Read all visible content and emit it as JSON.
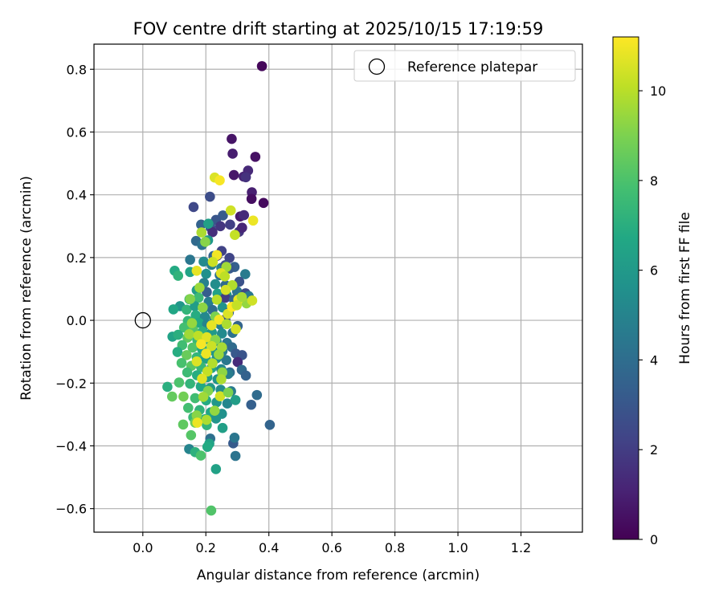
{
  "chart_data": {
    "type": "scatter",
    "title": "FOV centre drift starting at 2025/10/15 17:19:59",
    "xlabel": "Angular distance from reference (arcmin)",
    "ylabel": "Rotation from reference (arcmin)",
    "xlim": [
      -0.155,
      1.395
    ],
    "ylim": [
      -0.675,
      0.88
    ],
    "xticks": [
      0.0,
      0.2,
      0.4,
      0.6,
      0.8,
      1.0,
      1.2
    ],
    "xtick_labels": [
      "0.0",
      "0.2",
      "0.4",
      "0.6",
      "0.8",
      "1.0",
      "1.2"
    ],
    "yticks": [
      -0.6,
      -0.4,
      -0.2,
      0.0,
      0.2,
      0.4,
      0.6,
      0.8
    ],
    "ytick_labels": [
      "−0.6",
      "−0.4",
      "−0.2",
      "0.0",
      "0.2",
      "0.4",
      "0.6",
      "0.8"
    ],
    "grid": true,
    "legend": {
      "placement": "top-right",
      "entries": [
        "Reference platepar"
      ]
    },
    "reference_point": {
      "x": 0.0,
      "y": 0.0
    },
    "colorbar": {
      "label": "Hours from first FF file",
      "colormap": "viridis",
      "range": [
        0,
        11.2
      ],
      "ticks": [
        0,
        2,
        4,
        6,
        8,
        10
      ],
      "tick_labels": [
        "0",
        "2",
        "4",
        "6",
        "8",
        "10"
      ]
    },
    "points_columns": [
      "x",
      "y",
      "hours"
    ],
    "points": [
      [
        0.378,
        0.81,
        0.2
      ],
      [
        0.282,
        0.578,
        0.6
      ],
      [
        0.285,
        0.531,
        0.9
      ],
      [
        0.357,
        0.521,
        0.5
      ],
      [
        0.334,
        0.477,
        1.3
      ],
      [
        0.289,
        0.463,
        0.7
      ],
      [
        0.32,
        0.458,
        1.1
      ],
      [
        0.327,
        0.456,
        1.6
      ],
      [
        0.346,
        0.408,
        1.0
      ],
      [
        0.161,
        0.361,
        2.4
      ],
      [
        0.213,
        0.394,
        2.6
      ],
      [
        0.345,
        0.387,
        0.4
      ],
      [
        0.383,
        0.374,
        0.3
      ],
      [
        0.309,
        0.331,
        0.8
      ],
      [
        0.321,
        0.335,
        1.4
      ],
      [
        0.254,
        0.334,
        3.2
      ],
      [
        0.232,
        0.32,
        3.0
      ],
      [
        0.277,
        0.305,
        2.1
      ],
      [
        0.246,
        0.3,
        1.8
      ],
      [
        0.215,
        0.296,
        2.9
      ],
      [
        0.221,
        0.281,
        1.5
      ],
      [
        0.305,
        0.282,
        1.7
      ],
      [
        0.315,
        0.295,
        1.2
      ],
      [
        0.185,
        0.305,
        3.5
      ],
      [
        0.208,
        0.308,
        6.3
      ],
      [
        0.169,
        0.253,
        3.8
      ],
      [
        0.207,
        0.255,
        6.0
      ],
      [
        0.188,
        0.24,
        4.2
      ],
      [
        0.25,
        0.221,
        2.2
      ],
      [
        0.224,
        0.205,
        3.6
      ],
      [
        0.275,
        0.199,
        2.3
      ],
      [
        0.236,
        0.206,
        1.9
      ],
      [
        0.15,
        0.193,
        4.4
      ],
      [
        0.193,
        0.187,
        5.3
      ],
      [
        0.218,
        0.177,
        4.8
      ],
      [
        0.249,
        0.167,
        5.0
      ],
      [
        0.262,
        0.176,
        2.7
      ],
      [
        0.291,
        0.17,
        3.4
      ],
      [
        0.325,
        0.147,
        4.6
      ],
      [
        0.101,
        0.158,
        6.8
      ],
      [
        0.112,
        0.142,
        7.2
      ],
      [
        0.15,
        0.154,
        6.5
      ],
      [
        0.201,
        0.148,
        5.6
      ],
      [
        0.244,
        0.144,
        4.1
      ],
      [
        0.275,
        0.165,
        3.1
      ],
      [
        0.306,
        0.123,
        2.8
      ],
      [
        0.194,
        0.119,
        4.9
      ],
      [
        0.23,
        0.115,
        5.4
      ],
      [
        0.262,
        0.112,
        3.9
      ],
      [
        0.171,
        0.096,
        6.1
      ],
      [
        0.203,
        0.09,
        3.3
      ],
      [
        0.237,
        0.085,
        6.4
      ],
      [
        0.266,
        0.081,
        5.8
      ],
      [
        0.299,
        0.092,
        4.3
      ],
      [
        0.326,
        0.086,
        2.5
      ],
      [
        0.148,
        0.067,
        7.0
      ],
      [
        0.177,
        0.072,
        7.6
      ],
      [
        0.209,
        0.059,
        4.7
      ],
      [
        0.243,
        0.066,
        5.1
      ],
      [
        0.262,
        0.072,
        2.0
      ],
      [
        0.289,
        0.066,
        3.7
      ],
      [
        0.336,
        0.077,
        4.5
      ],
      [
        0.329,
        0.054,
        9.4
      ],
      [
        0.118,
        0.045,
        5.9
      ],
      [
        0.097,
        0.035,
        6.6
      ],
      [
        0.139,
        0.034,
        7.3
      ],
      [
        0.165,
        0.045,
        6.2
      ],
      [
        0.193,
        0.038,
        5.5
      ],
      [
        0.221,
        0.033,
        4.0
      ],
      [
        0.253,
        0.041,
        5.7
      ],
      [
        0.273,
        0.025,
        3.2
      ],
      [
        0.168,
        0.016,
        6.9
      ],
      [
        0.197,
        0.011,
        5.2
      ],
      [
        0.228,
        0.005,
        4.6
      ],
      [
        0.262,
        0.003,
        3.0
      ],
      [
        0.143,
        -0.002,
        7.4
      ],
      [
        0.178,
        -0.008,
        6.7
      ],
      [
        0.204,
        -0.012,
        5.0
      ],
      [
        0.246,
        -0.014,
        4.9
      ],
      [
        0.301,
        -0.018,
        3.6
      ],
      [
        0.131,
        -0.023,
        7.8
      ],
      [
        0.16,
        -0.031,
        8.2
      ],
      [
        0.19,
        -0.036,
        7.1
      ],
      [
        0.219,
        -0.038,
        6.0
      ],
      [
        0.251,
        -0.042,
        5.3
      ],
      [
        0.285,
        -0.04,
        4.2
      ],
      [
        0.094,
        -0.052,
        6.5
      ],
      [
        0.112,
        -0.046,
        7.0
      ],
      [
        0.142,
        -0.055,
        8.4
      ],
      [
        0.173,
        -0.063,
        7.5
      ],
      [
        0.203,
        -0.06,
        6.3
      ],
      [
        0.234,
        -0.067,
        5.6
      ],
      [
        0.267,
        -0.072,
        4.4
      ],
      [
        0.125,
        -0.079,
        7.7
      ],
      [
        0.158,
        -0.087,
        8.1
      ],
      [
        0.188,
        -0.092,
        6.6
      ],
      [
        0.221,
        -0.096,
        5.8
      ],
      [
        0.253,
        -0.098,
        4.8
      ],
      [
        0.283,
        -0.086,
        3.9
      ],
      [
        0.295,
        -0.106,
        3.1
      ],
      [
        0.315,
        -0.111,
        2.9
      ],
      [
        0.11,
        -0.101,
        6.9
      ],
      [
        0.139,
        -0.111,
        8.6
      ],
      [
        0.171,
        -0.118,
        7.3
      ],
      [
        0.2,
        -0.122,
        6.4
      ],
      [
        0.234,
        -0.121,
        5.5
      ],
      [
        0.265,
        -0.127,
        4.5
      ],
      [
        0.301,
        -0.133,
        1.4
      ],
      [
        0.123,
        -0.136,
        7.9
      ],
      [
        0.154,
        -0.145,
        8.3
      ],
      [
        0.185,
        -0.149,
        7.4
      ],
      [
        0.218,
        -0.152,
        6.5
      ],
      [
        0.249,
        -0.156,
        5.2
      ],
      [
        0.276,
        -0.166,
        4.0
      ],
      [
        0.314,
        -0.158,
        3.8
      ],
      [
        0.141,
        -0.166,
        7.6
      ],
      [
        0.172,
        -0.175,
        6.9
      ],
      [
        0.205,
        -0.181,
        6.1
      ],
      [
        0.237,
        -0.188,
        5.7
      ],
      [
        0.271,
        -0.171,
        4.7
      ],
      [
        0.327,
        -0.176,
        3.5
      ],
      [
        0.078,
        -0.212,
        7.0
      ],
      [
        0.115,
        -0.198,
        8.0
      ],
      [
        0.15,
        -0.202,
        7.3
      ],
      [
        0.184,
        -0.211,
        6.7
      ],
      [
        0.214,
        -0.216,
        6.0
      ],
      [
        0.247,
        -0.221,
        5.4
      ],
      [
        0.28,
        -0.226,
        4.6
      ],
      [
        0.093,
        -0.243,
        8.5
      ],
      [
        0.129,
        -0.243,
        8.8
      ],
      [
        0.166,
        -0.248,
        7.7
      ],
      [
        0.201,
        -0.255,
        6.8
      ],
      [
        0.234,
        -0.261,
        5.9
      ],
      [
        0.268,
        -0.265,
        5.1
      ],
      [
        0.294,
        -0.254,
        6.2
      ],
      [
        0.344,
        -0.269,
        3.4
      ],
      [
        0.362,
        -0.238,
        3.9
      ],
      [
        0.144,
        -0.279,
        7.8
      ],
      [
        0.18,
        -0.286,
        7.2
      ],
      [
        0.216,
        -0.293,
        6.6
      ],
      [
        0.251,
        -0.298,
        5.6
      ],
      [
        0.16,
        -0.309,
        7.5
      ],
      [
        0.197,
        -0.315,
        6.9
      ],
      [
        0.232,
        -0.313,
        5.8
      ],
      [
        0.128,
        -0.332,
        8.4
      ],
      [
        0.166,
        -0.326,
        8.7
      ],
      [
        0.203,
        -0.334,
        7.3
      ],
      [
        0.403,
        -0.333,
        3.6
      ],
      [
        0.253,
        -0.343,
        6.3
      ],
      [
        0.153,
        -0.366,
        8.2
      ],
      [
        0.214,
        -0.377,
        4.1
      ],
      [
        0.287,
        -0.392,
        3.2
      ],
      [
        0.291,
        -0.374,
        4.4
      ],
      [
        0.211,
        -0.393,
        6.5
      ],
      [
        0.147,
        -0.41,
        5.0
      ],
      [
        0.166,
        -0.42,
        7.1
      ],
      [
        0.184,
        -0.431,
        8.0
      ],
      [
        0.205,
        -0.403,
        6.8
      ],
      [
        0.294,
        -0.432,
        4.3
      ],
      [
        0.232,
        -0.474,
        6.4
      ],
      [
        0.217,
        -0.606,
        8.1
      ],
      [
        0.228,
        0.455,
        10.6
      ],
      [
        0.244,
        0.446,
        11.1
      ],
      [
        0.279,
        0.35,
        10.4
      ],
      [
        0.35,
        0.318,
        10.9
      ],
      [
        0.292,
        0.272,
        10.2
      ],
      [
        0.186,
        0.28,
        9.8
      ],
      [
        0.198,
        0.25,
        9.2
      ],
      [
        0.235,
        0.208,
        11.0
      ],
      [
        0.222,
        0.186,
        10.3
      ],
      [
        0.265,
        0.17,
        9.6
      ],
      [
        0.248,
        0.15,
        10.7
      ],
      [
        0.26,
        0.14,
        10.1
      ],
      [
        0.171,
        0.158,
        10.8
      ],
      [
        0.18,
        0.104,
        9.5
      ],
      [
        0.284,
        0.112,
        9.9
      ],
      [
        0.263,
        0.097,
        10.5
      ],
      [
        0.15,
        0.068,
        9.1
      ],
      [
        0.235,
        0.066,
        10.0
      ],
      [
        0.303,
        0.066,
        10.9
      ],
      [
        0.314,
        0.074,
        9.7
      ],
      [
        0.347,
        0.063,
        10.4
      ],
      [
        0.19,
        0.041,
        9.3
      ],
      [
        0.23,
        0.012,
        9.0
      ],
      [
        0.27,
        0.021,
        10.6
      ],
      [
        0.283,
        0.043,
        11.2
      ],
      [
        0.298,
        0.048,
        10.2
      ],
      [
        0.242,
        0.002,
        11.0
      ],
      [
        0.156,
        -0.009,
        9.4
      ],
      [
        0.218,
        -0.016,
        10.8
      ],
      [
        0.266,
        -0.012,
        9.8
      ],
      [
        0.295,
        -0.028,
        10.5
      ],
      [
        0.147,
        -0.044,
        9.6
      ],
      [
        0.176,
        -0.049,
        10.1
      ],
      [
        0.203,
        -0.054,
        10.7
      ],
      [
        0.23,
        -0.062,
        9.2
      ],
      [
        0.185,
        -0.076,
        11.1
      ],
      [
        0.218,
        -0.082,
        10.3
      ],
      [
        0.251,
        -0.086,
        9.7
      ],
      [
        0.201,
        -0.106,
        10.9
      ],
      [
        0.241,
        -0.109,
        9.5
      ],
      [
        0.171,
        -0.131,
        10.6
      ],
      [
        0.221,
        -0.137,
        9.9
      ],
      [
        0.205,
        -0.163,
        10.2
      ],
      [
        0.252,
        -0.166,
        9.3
      ],
      [
        0.188,
        -0.186,
        10.7
      ],
      [
        0.249,
        -0.188,
        9.8
      ],
      [
        0.207,
        -0.225,
        9.1
      ],
      [
        0.245,
        -0.242,
        10.4
      ],
      [
        0.271,
        -0.23,
        9.0
      ],
      [
        0.192,
        -0.244,
        9.6
      ],
      [
        0.228,
        -0.288,
        9.4
      ],
      [
        0.171,
        -0.303,
        9.2
      ],
      [
        0.202,
        -0.317,
        9.8
      ],
      [
        0.173,
        -0.326,
        10.9
      ]
    ]
  }
}
